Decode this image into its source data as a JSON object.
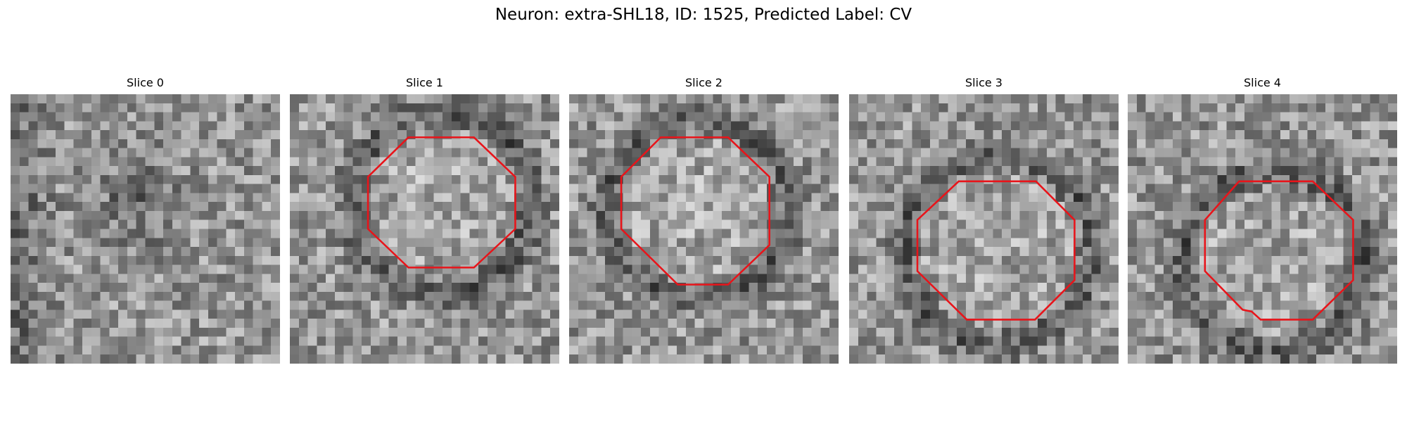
{
  "title": "Neuron: extra-SHL18, ID: 1525, Predicted Label: CV",
  "panels": [
    {
      "title": "Slice 0"
    },
    {
      "title": "Slice 1"
    },
    {
      "title": "Slice 2"
    },
    {
      "title": "Slice 3"
    },
    {
      "title": "Slice 4"
    }
  ]
}
